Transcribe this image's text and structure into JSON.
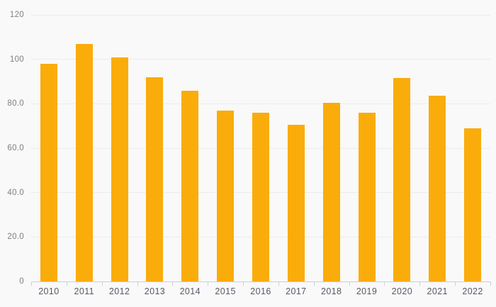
{
  "chart_data": {
    "type": "bar",
    "title": "",
    "xlabel": "",
    "ylabel": "",
    "categories": [
      "2010",
      "2011",
      "2012",
      "2013",
      "2014",
      "2015",
      "2016",
      "2017",
      "2018",
      "2019",
      "2020",
      "2021",
      "2022"
    ],
    "values": [
      98,
      107,
      101,
      92,
      86,
      77,
      76,
      70.5,
      80.5,
      76,
      91.5,
      83.5,
      69
    ],
    "ylim": [
      0,
      120
    ],
    "yticks": [
      0,
      20,
      40,
      60,
      80,
      100,
      120
    ],
    "ytick_labels": [
      "0",
      "20.0",
      "40.0",
      "60.0",
      "80.0",
      "100",
      "120"
    ],
    "grid": true,
    "legend": false,
    "colors": {
      "bar": "#FAAC0A",
      "background": "#F9F9F9",
      "gridline": "#ECECEC",
      "axis_line": "#C9D0DE",
      "x_label": "#565A63",
      "y_label": "#7D8187"
    }
  }
}
